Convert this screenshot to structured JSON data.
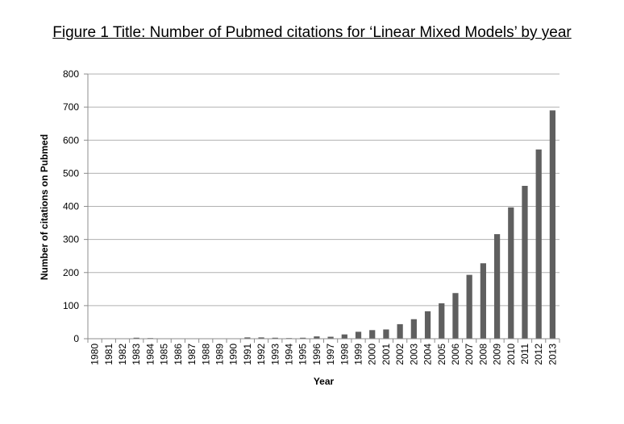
{
  "chart_data": {
    "type": "bar",
    "title": "Figure 1 Title: Number of Pubmed citations for ‘Linear Mixed Models’ by year",
    "xlabel": "Year",
    "ylabel": "Number of citations on Pubmed",
    "ylim": [
      0,
      800
    ],
    "yticks": [
      0,
      100,
      200,
      300,
      400,
      500,
      600,
      700,
      800
    ],
    "grid": true,
    "categories": [
      "1980",
      "1981",
      "1982",
      "1983",
      "1984",
      "1985",
      "1986",
      "1987",
      "1988",
      "1989",
      "1990",
      "1991",
      "1992",
      "1993",
      "1994",
      "1995",
      "1996",
      "1997",
      "1998",
      "1999",
      "2000",
      "2001",
      "2002",
      "2003",
      "2004",
      "2005",
      "2006",
      "2007",
      "2008",
      "2009",
      "2010",
      "2011",
      "2012",
      "2013"
    ],
    "values": [
      0,
      0,
      1,
      3,
      2,
      0,
      0,
      0,
      0,
      0,
      0,
      4,
      4,
      3,
      2,
      3,
      7,
      6,
      13,
      21,
      26,
      28,
      44,
      59,
      83,
      107,
      138,
      193,
      228,
      316,
      397,
      462,
      572,
      690
    ],
    "bar_color": "#5f5f5f",
    "grid_color": "#b0b0b0",
    "axis_color": "#8c8c8c"
  }
}
